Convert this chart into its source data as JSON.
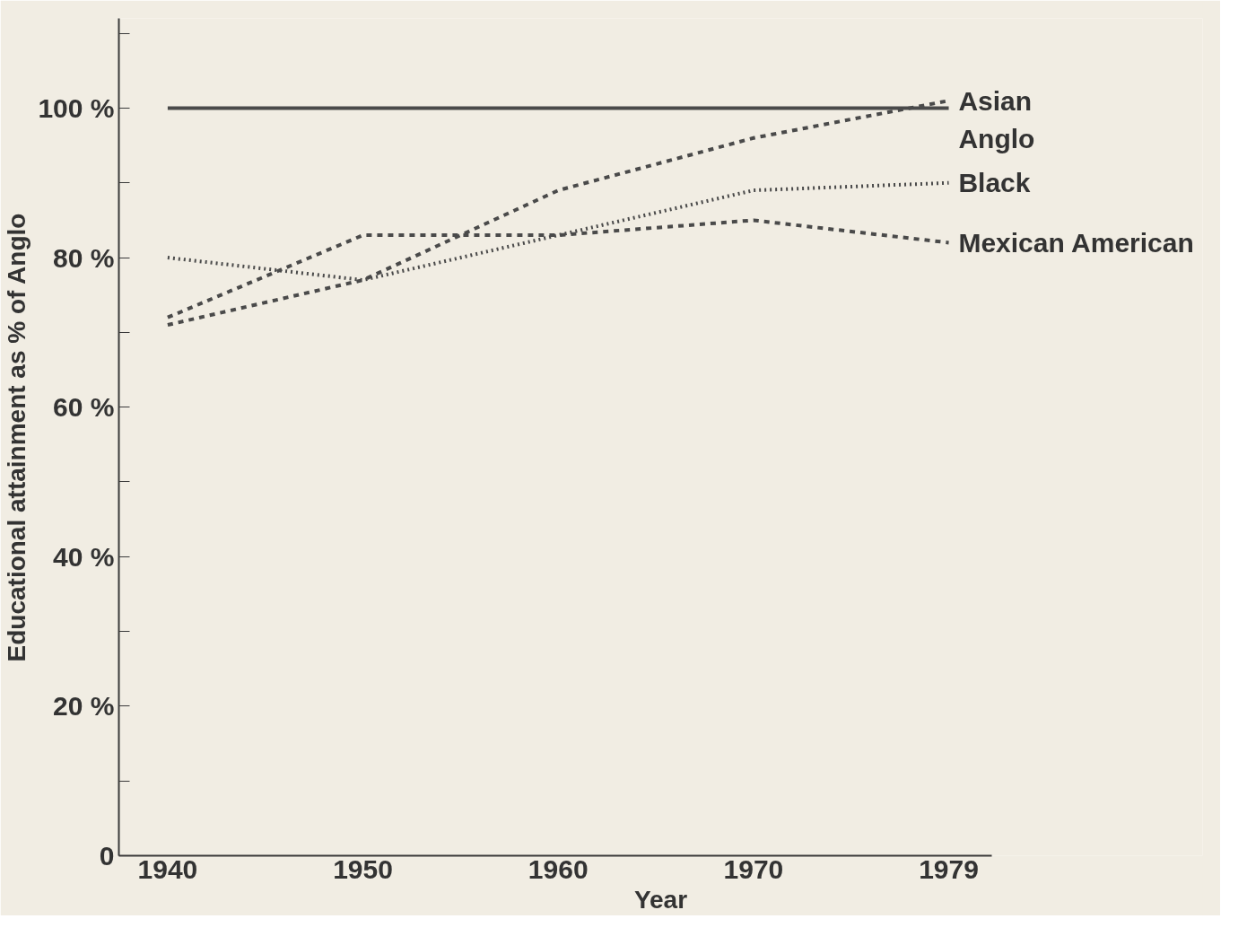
{
  "chart_data": {
    "type": "line",
    "xlabel": "Year",
    "ylabel": "Educational attainment as % of Anglo",
    "categories": [
      "1940",
      "1950",
      "1960",
      "1970",
      "1979"
    ],
    "ylim": [
      0,
      112
    ],
    "yticks": [
      {
        "value": 0,
        "label": "0"
      },
      {
        "value": 10,
        "label": null
      },
      {
        "value": 20,
        "label": "20 %"
      },
      {
        "value": 30,
        "label": null
      },
      {
        "value": 40,
        "label": "40 %"
      },
      {
        "value": 50,
        "label": null
      },
      {
        "value": 60,
        "label": "60 %"
      },
      {
        "value": 70,
        "label": null
      },
      {
        "value": 80,
        "label": "80 %"
      },
      {
        "value": 90,
        "label": null
      },
      {
        "value": 100,
        "label": "100 %"
      },
      {
        "value": 110,
        "label": null
      }
    ],
    "grid": false,
    "marker": "none",
    "series": [
      {
        "name": "Anglo",
        "color": "#4a4a4a",
        "line_style": "solid",
        "values": [
          100,
          100,
          100,
          100,
          100
        ]
      },
      {
        "name": "Asian",
        "color": "#4a4a4a",
        "line_style": "dashed",
        "values": [
          71,
          77,
          89,
          96,
          101
        ]
      },
      {
        "name": "Black",
        "color": "#4a4a4a",
        "line_style": "dotted",
        "values": [
          80,
          77,
          83,
          89,
          90
        ]
      },
      {
        "name": "Mexican American",
        "color": "#4a4a4a",
        "line_style": "dashed",
        "values": [
          72,
          83,
          83,
          85,
          82
        ]
      }
    ]
  }
}
